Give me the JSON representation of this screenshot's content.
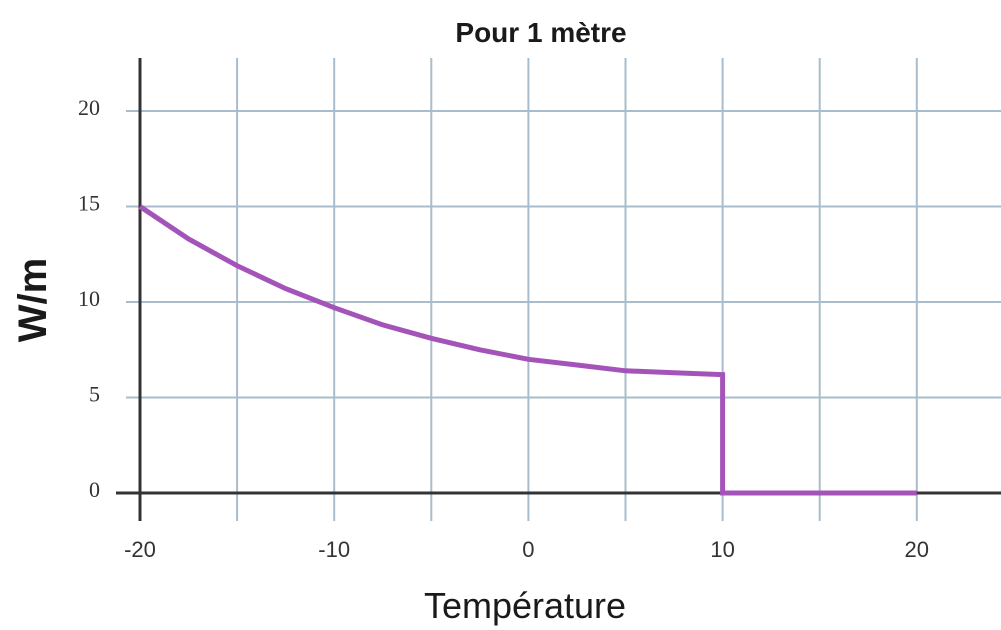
{
  "chart_data": {
    "type": "line",
    "title": "Pour 1 mètre",
    "xlabel": "Température",
    "ylabel": "W/m",
    "xlim": [
      -20,
      25
    ],
    "ylim": [
      0,
      20
    ],
    "x_ticks": [
      -20,
      -10,
      0,
      10,
      20
    ],
    "y_ticks": [
      0,
      5,
      10,
      15,
      20
    ],
    "grid": true,
    "legend": "none",
    "series": [
      {
        "color": "#a454b8",
        "points": [
          [
            -20,
            15.0
          ],
          [
            -17.5,
            13.3
          ],
          [
            -15,
            11.9
          ],
          [
            -12.5,
            10.7
          ],
          [
            -10,
            9.7
          ],
          [
            -7.5,
            8.8
          ],
          [
            -5,
            8.1
          ],
          [
            -2.5,
            7.5
          ],
          [
            0,
            7.0
          ],
          [
            2.5,
            6.7
          ],
          [
            5,
            6.4
          ],
          [
            7.5,
            6.3
          ],
          [
            10,
            6.2
          ],
          [
            10,
            0
          ],
          [
            15,
            0
          ],
          [
            20,
            0
          ]
        ]
      }
    ]
  },
  "colors": {
    "grid": "#a9bccb",
    "axis": "#333333",
    "line": "#a454b8"
  }
}
